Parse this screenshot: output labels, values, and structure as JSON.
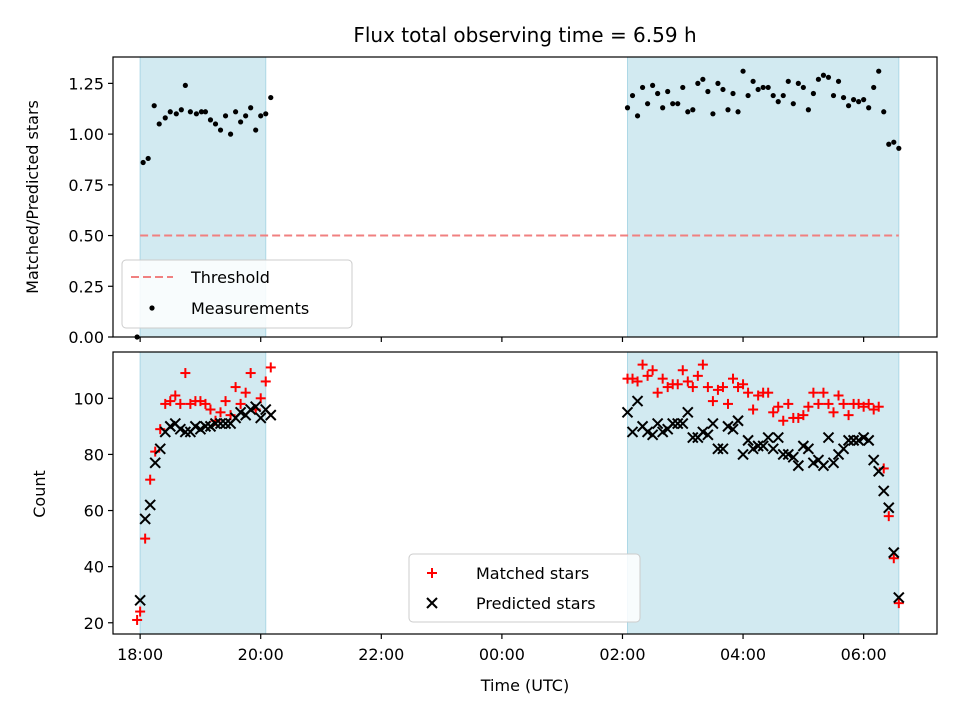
{
  "title": "Flux total observing time = 6.59 h",
  "colors": {
    "night_band": "#add8e6",
    "threshold": "#f08080",
    "measurements": "#000000",
    "matched": "#ff0000",
    "predicted": "#000000"
  },
  "chart_data": [
    {
      "type": "scatter",
      "ylabel": "Matched/Predicted stars",
      "ylim": [
        0,
        1.38
      ],
      "xlim": [
        "17:33",
        "07:13"
      ],
      "y_ticks": [
        "0.00",
        "0.25",
        "0.50",
        "0.75",
        "1.00",
        "1.25"
      ],
      "shaded_intervals": [
        [
          "18:00",
          "20:05"
        ],
        [
          "02:05",
          "06:35"
        ]
      ],
      "threshold": 0.5,
      "legend": {
        "position": "lower-left",
        "entries": [
          "Threshold",
          "Measurements"
        ]
      },
      "series": [
        {
          "name": "Measurements",
          "points": [
            [
              "17:57",
              0.0
            ],
            [
              "18:03",
              0.86
            ],
            [
              "18:08",
              0.88
            ],
            [
              "18:14",
              1.14
            ],
            [
              "18:19",
              1.05
            ],
            [
              "18:25",
              1.08
            ],
            [
              "18:30",
              1.11
            ],
            [
              "18:36",
              1.1
            ],
            [
              "18:41",
              1.12
            ],
            [
              "18:45",
              1.24
            ],
            [
              "18:50",
              1.11
            ],
            [
              "18:56",
              1.1
            ],
            [
              "19:01",
              1.11
            ],
            [
              "19:05",
              1.11
            ],
            [
              "19:10",
              1.07
            ],
            [
              "19:15",
              1.05
            ],
            [
              "19:20",
              1.02
            ],
            [
              "19:25",
              1.09
            ],
            [
              "19:30",
              1.0
            ],
            [
              "19:35",
              1.11
            ],
            [
              "19:40",
              1.06
            ],
            [
              "19:45",
              1.09
            ],
            [
              "19:50",
              1.13
            ],
            [
              "19:55",
              1.02
            ],
            [
              "20:00",
              1.09
            ],
            [
              "20:05",
              1.1
            ],
            [
              "20:10",
              1.18
            ],
            [
              "02:05",
              1.13
            ],
            [
              "02:10",
              1.19
            ],
            [
              "02:15",
              1.09
            ],
            [
              "02:20",
              1.23
            ],
            [
              "02:25",
              1.15
            ],
            [
              "02:30",
              1.24
            ],
            [
              "02:35",
              1.2
            ],
            [
              "02:40",
              1.13
            ],
            [
              "02:45",
              1.21
            ],
            [
              "02:50",
              1.15
            ],
            [
              "02:55",
              1.15
            ],
            [
              "03:00",
              1.23
            ],
            [
              "03:05",
              1.11
            ],
            [
              "03:10",
              1.12
            ],
            [
              "03:15",
              1.25
            ],
            [
              "03:20",
              1.27
            ],
            [
              "03:25",
              1.21
            ],
            [
              "03:30",
              1.1
            ],
            [
              "03:35",
              1.25
            ],
            [
              "03:40",
              1.22
            ],
            [
              "03:45",
              1.12
            ],
            [
              "03:50",
              1.2
            ],
            [
              "03:55",
              1.11
            ],
            [
              "04:00",
              1.31
            ],
            [
              "04:05",
              1.19
            ],
            [
              "04:10",
              1.26
            ],
            [
              "04:15",
              1.22
            ],
            [
              "04:20",
              1.23
            ],
            [
              "04:25",
              1.23
            ],
            [
              "04:30",
              1.19
            ],
            [
              "04:35",
              1.16
            ],
            [
              "04:40",
              1.19
            ],
            [
              "04:45",
              1.26
            ],
            [
              "04:50",
              1.15
            ],
            [
              "04:55",
              1.25
            ],
            [
              "05:00",
              1.23
            ],
            [
              "05:05",
              1.12
            ],
            [
              "05:10",
              1.2
            ],
            [
              "05:15",
              1.27
            ],
            [
              "05:20",
              1.29
            ],
            [
              "05:25",
              1.28
            ],
            [
              "05:30",
              1.19
            ],
            [
              "05:35",
              1.26
            ],
            [
              "05:40",
              1.18
            ],
            [
              "05:45",
              1.14
            ],
            [
              "05:50",
              1.17
            ],
            [
              "05:55",
              1.16
            ],
            [
              "06:00",
              1.17
            ],
            [
              "06:05",
              1.13
            ],
            [
              "06:10",
              1.23
            ],
            [
              "06:15",
              1.31
            ],
            [
              "06:20",
              1.11
            ],
            [
              "06:25",
              0.95
            ],
            [
              "06:30",
              0.96
            ],
            [
              "06:35",
              0.93
            ]
          ]
        }
      ]
    },
    {
      "type": "scatter",
      "ylabel": "Count",
      "xlabel": "Time (UTC)",
      "ylim": [
        16,
        116.5
      ],
      "xlim": [
        "17:33",
        "07:13"
      ],
      "y_ticks": [
        "20",
        "40",
        "60",
        "80",
        "100"
      ],
      "x_ticks": [
        "18:00",
        "20:00",
        "22:00",
        "00:00",
        "02:00",
        "04:00",
        "06:00"
      ],
      "shaded_intervals": [
        [
          "18:00",
          "20:05"
        ],
        [
          "02:05",
          "06:35"
        ]
      ],
      "legend": {
        "position": "lower-center",
        "entries": [
          "Matched stars",
          "Predicted stars"
        ]
      },
      "series": [
        {
          "name": "Matched stars",
          "points": [
            [
              "17:57",
              21
            ],
            [
              "18:00",
              24
            ],
            [
              "18:05",
              50
            ],
            [
              "18:10",
              71
            ],
            [
              "18:15",
              81
            ],
            [
              "18:20",
              89
            ],
            [
              "18:25",
              98
            ],
            [
              "18:30",
              99
            ],
            [
              "18:35",
              101
            ],
            [
              "18:40",
              98
            ],
            [
              "18:45",
              109
            ],
            [
              "18:50",
              98
            ],
            [
              "18:55",
              99
            ],
            [
              "19:00",
              99
            ],
            [
              "19:05",
              98
            ],
            [
              "19:10",
              96
            ],
            [
              "19:15",
              92
            ],
            [
              "19:20",
              95
            ],
            [
              "19:25",
              99
            ],
            [
              "19:30",
              94
            ],
            [
              "19:35",
              104
            ],
            [
              "19:40",
              98
            ],
            [
              "19:45",
              102
            ],
            [
              "19:50",
              109
            ],
            [
              "19:55",
              96
            ],
            [
              "20:00",
              100
            ],
            [
              "20:05",
              106
            ],
            [
              "20:10",
              111
            ],
            [
              "02:05",
              107
            ],
            [
              "02:10",
              107
            ],
            [
              "02:15",
              106
            ],
            [
              "02:20",
              112
            ],
            [
              "02:25",
              108
            ],
            [
              "02:30",
              110
            ],
            [
              "02:35",
              102
            ],
            [
              "02:40",
              107
            ],
            [
              "02:45",
              104
            ],
            [
              "02:50",
              105
            ],
            [
              "02:55",
              105
            ],
            [
              "03:00",
              110
            ],
            [
              "03:05",
              106
            ],
            [
              "03:10",
              104
            ],
            [
              "03:15",
              108
            ],
            [
              "03:20",
              112
            ],
            [
              "03:25",
              104
            ],
            [
              "03:30",
              99
            ],
            [
              "03:35",
              103
            ],
            [
              "03:40",
              104
            ],
            [
              "03:45",
              98
            ],
            [
              "03:50",
              107
            ],
            [
              "03:55",
              104
            ],
            [
              "04:00",
              105
            ],
            [
              "04:05",
              102
            ],
            [
              "04:10",
              96
            ],
            [
              "04:15",
              101
            ],
            [
              "04:20",
              102
            ],
            [
              "04:25",
              102
            ],
            [
              "04:30",
              95
            ],
            [
              "04:35",
              97
            ],
            [
              "04:40",
              92
            ],
            [
              "04:45",
              98
            ],
            [
              "04:50",
              93
            ],
            [
              "04:55",
              93
            ],
            [
              "05:00",
              94
            ],
            [
              "05:05",
              97
            ],
            [
              "05:10",
              102
            ],
            [
              "05:15",
              98
            ],
            [
              "05:20",
              102
            ],
            [
              "05:25",
              98
            ],
            [
              "05:30",
              95
            ],
            [
              "05:35",
              101
            ],
            [
              "05:40",
              98
            ],
            [
              "05:45",
              94
            ],
            [
              "05:50",
              98
            ],
            [
              "05:55",
              98
            ],
            [
              "06:00",
              97
            ],
            [
              "06:05",
              98
            ],
            [
              "06:10",
              96
            ],
            [
              "06:15",
              97
            ],
            [
              "06:20",
              75
            ],
            [
              "06:25",
              58
            ],
            [
              "06:30",
              43
            ],
            [
              "06:35",
              27
            ]
          ]
        },
        {
          "name": "Predicted stars",
          "points": [
            [
              "18:00",
              28
            ],
            [
              "18:05",
              57
            ],
            [
              "18:10",
              62
            ],
            [
              "18:15",
              77
            ],
            [
              "18:20",
              82
            ],
            [
              "18:25",
              88
            ],
            [
              "18:30",
              90
            ],
            [
              "18:35",
              91
            ],
            [
              "18:40",
              89
            ],
            [
              "18:45",
              88
            ],
            [
              "18:50",
              88
            ],
            [
              "18:55",
              90
            ],
            [
              "19:00",
              89
            ],
            [
              "19:05",
              90
            ],
            [
              "19:10",
              90
            ],
            [
              "19:15",
              91
            ],
            [
              "19:20",
              91
            ],
            [
              "19:25",
              91
            ],
            [
              "19:30",
              91
            ],
            [
              "19:35",
              93
            ],
            [
              "19:40",
              95
            ],
            [
              "19:45",
              94
            ],
            [
              "19:50",
              96
            ],
            [
              "19:55",
              97
            ],
            [
              "20:00",
              93
            ],
            [
              "20:05",
              96
            ],
            [
              "20:10",
              94
            ],
            [
              "02:05",
              95
            ],
            [
              "02:10",
              88
            ],
            [
              "02:15",
              99
            ],
            [
              "02:20",
              90
            ],
            [
              "02:25",
              88
            ],
            [
              "02:30",
              87
            ],
            [
              "02:35",
              91
            ],
            [
              "02:40",
              88
            ],
            [
              "02:45",
              89
            ],
            [
              "02:50",
              91
            ],
            [
              "02:55",
              91
            ],
            [
              "03:00",
              91
            ],
            [
              "03:05",
              95
            ],
            [
              "03:10",
              86
            ],
            [
              "03:15",
              86
            ],
            [
              "03:20",
              88
            ],
            [
              "03:25",
              87
            ],
            [
              "03:30",
              91
            ],
            [
              "03:35",
              82
            ],
            [
              "03:40",
              82
            ],
            [
              "03:45",
              90
            ],
            [
              "03:50",
              89
            ],
            [
              "03:55",
              92
            ],
            [
              "04:00",
              80
            ],
            [
              "04:05",
              85
            ],
            [
              "04:10",
              82
            ],
            [
              "04:15",
              83
            ],
            [
              "04:20",
              83
            ],
            [
              "04:25",
              86
            ],
            [
              "04:30",
              82
            ],
            [
              "04:35",
              86
            ],
            [
              "04:40",
              80
            ],
            [
              "04:45",
              80
            ],
            [
              "04:50",
              79
            ],
            [
              "04:55",
              76
            ],
            [
              "05:00",
              83
            ],
            [
              "05:05",
              82
            ],
            [
              "05:10",
              77
            ],
            [
              "05:15",
              78
            ],
            [
              "05:20",
              76
            ],
            [
              "05:25",
              86
            ],
            [
              "05:30",
              77
            ],
            [
              "05:35",
              80
            ],
            [
              "05:40",
              82
            ],
            [
              "05:45",
              85
            ],
            [
              "05:50",
              85
            ],
            [
              "05:55",
              85
            ],
            [
              "06:00",
              86
            ],
            [
              "06:05",
              85
            ],
            [
              "06:10",
              78
            ],
            [
              "06:15",
              74
            ],
            [
              "06:20",
              67
            ],
            [
              "06:25",
              61
            ],
            [
              "06:30",
              45
            ],
            [
              "06:35",
              29
            ]
          ]
        }
      ]
    }
  ]
}
